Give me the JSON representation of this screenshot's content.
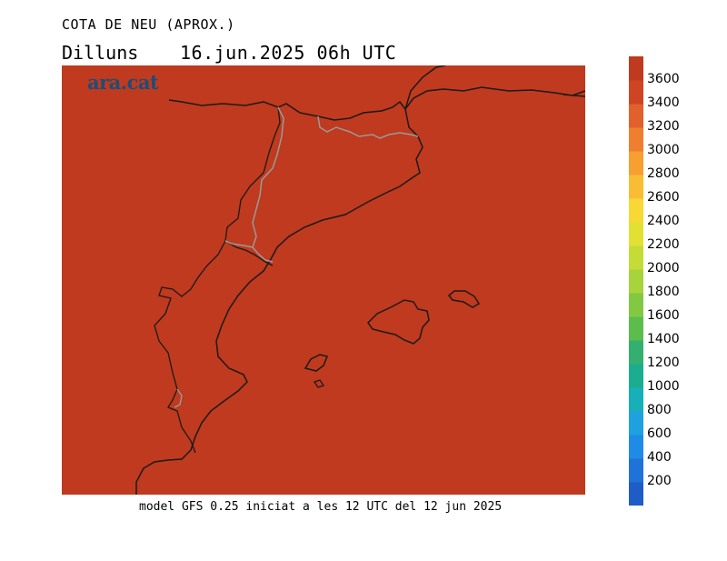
{
  "header": {
    "title": "COTA DE NEU (APROX.)",
    "day": "Dilluns",
    "datetime": "16.jun.2025 06h UTC"
  },
  "logo": {
    "text": "ara.cat",
    "color": "#1b4e7a"
  },
  "footer": {
    "text": "model GFS 0.25 iniciat a les 12 UTC del 12 jun 2025"
  },
  "map": {
    "field_color": "#bf3a1e",
    "coast_color": "#1a1a1a",
    "border_color": "#9a9a9a"
  },
  "colorbar": {
    "labels": [
      "3600",
      "3400",
      "3200",
      "3000",
      "2800",
      "2600",
      "2400",
      "2200",
      "2000",
      "1800",
      "1600",
      "1400",
      "1200",
      "1000",
      "800",
      "600",
      "400",
      "200"
    ],
    "colors": [
      "#1f5cc8",
      "#1f72d8",
      "#1f8be6",
      "#1ea2df",
      "#17b0b8",
      "#1aae8f",
      "#33b070",
      "#5cbd4d",
      "#82c942",
      "#a6d43a",
      "#c6dc36",
      "#e3e034",
      "#f7d834",
      "#f9bd34",
      "#f79f31",
      "#f07e2f",
      "#e2602b",
      "#cf4523",
      "#bf3a1e"
    ]
  }
}
